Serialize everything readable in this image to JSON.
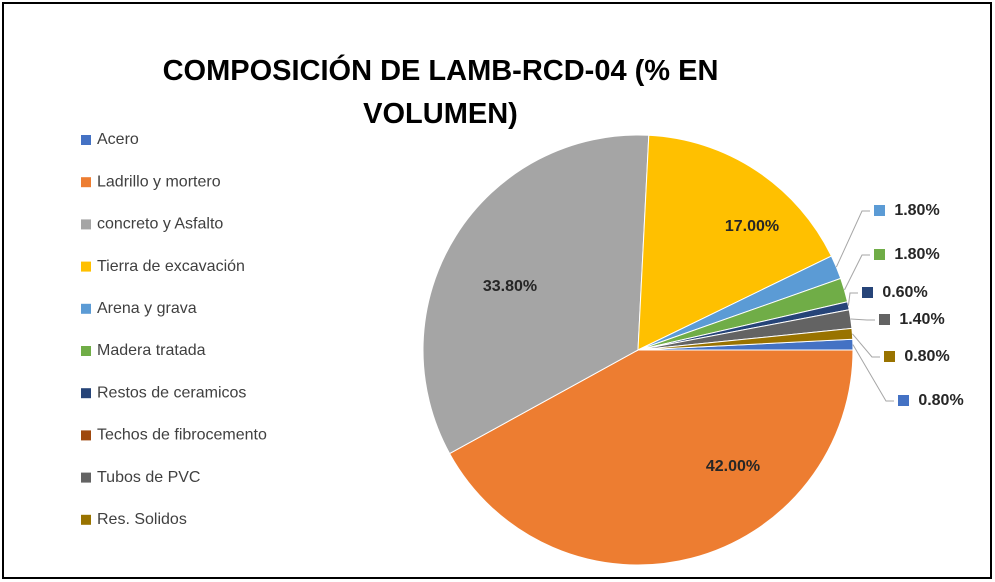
{
  "chart_data": {
    "type": "pie",
    "title": "COMPOSICIÓN DE LAMB-RCD-04 (% EN VOLUMEN)",
    "categories": [
      "Acero",
      "Ladrillo y mortero",
      "concreto y Asfalto",
      "Tierra de excavación",
      "Arena y grava",
      "Madera tratada",
      "Restos de ceramicos",
      "Techos de fibrocemento",
      "Tubos de PVC",
      "Res. Solidos"
    ],
    "values": [
      0.8,
      42,
      33.8,
      17,
      1.8,
      1.8,
      0.6,
      null,
      1.4,
      0.8
    ],
    "value_labels": [
      "0.80%",
      "42.00%",
      "33.80%",
      "17.00%",
      "1.80%",
      "1.80%",
      "0.60%",
      null,
      "1.40%",
      "0.80%"
    ],
    "colors": [
      "#4472c4",
      "#ed7d31",
      "#a5a5a5",
      "#ffc000",
      "#5b9bd5",
      "#70ad47",
      "#264478",
      "#9e480e",
      "#636363",
      "#997300"
    ],
    "legend": "left"
  }
}
